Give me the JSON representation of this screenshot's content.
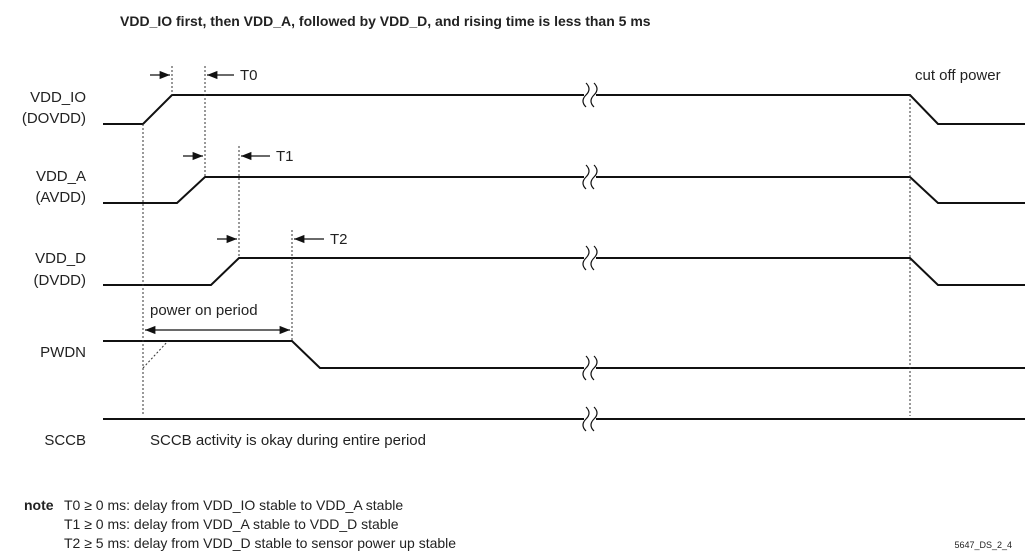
{
  "title": "VDD_IO first, then VDD_A, followed by VDD_D, and rising time is less than 5 ms",
  "signals": [
    {
      "name": "VDD_IO",
      "alias": "(DOVDD)"
    },
    {
      "name": "VDD_A",
      "alias": "(AVDD)"
    },
    {
      "name": "VDD_D",
      "alias": "(DVDD)"
    },
    {
      "name": "PWDN"
    },
    {
      "name": "SCCB"
    }
  ],
  "markers": [
    "T0",
    "T1",
    "T2"
  ],
  "annotations": {
    "cut_off": "cut off power",
    "power_on": "power on period",
    "sccb": "SCCB activity is okay during entire period"
  },
  "note": {
    "label": "note",
    "lines": [
      "T0 ≥ 0 ms: delay from VDD_IO stable to VDD_A stable",
      "T1 ≥ 0 ms: delay from VDD_A stable to VDD_D stable",
      "T2 ≥ 5 ms: delay from VDD_D stable to sensor power up stable"
    ]
  },
  "figure_id": "5647_DS_2_4"
}
